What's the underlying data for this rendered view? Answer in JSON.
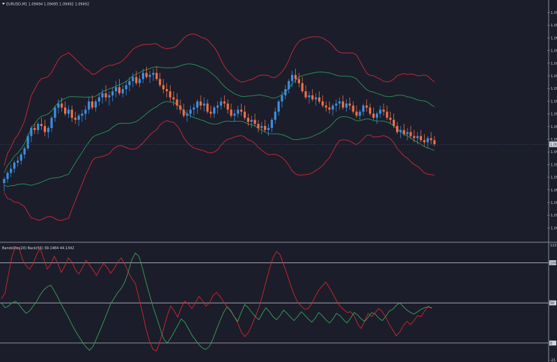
{
  "header": {
    "symbol_line": "EURUSD,M1  1.09494 1.09495 1.09492 1.09492",
    "indicator_line": "BandsOsc(20) Back(55) 39.1484 44.1342"
  },
  "colors": {
    "background": "#1b1d2a",
    "bull": "#3d8fe0",
    "bear": "#f07048",
    "band_outer": "#c0283a",
    "band_inner": "#2e8a58",
    "osc_red": "#d8262e",
    "osc_green": "#38a45a",
    "level_line": "#d0d4dc"
  },
  "chart_data": [
    {
      "type": "candlestick",
      "title": "EURUSD,M1",
      "last_price_label": "1.09492",
      "axis_label_prefix": "1.09",
      "bollinger_bands": {
        "outer": "red",
        "inner": "green"
      },
      "candles": [
        [
          28,
          31,
          24,
          30
        ],
        [
          30,
          34,
          28,
          33
        ],
        [
          33,
          37,
          31,
          35
        ],
        [
          35,
          39,
          33,
          38
        ],
        [
          38,
          41,
          36,
          39
        ],
        [
          39,
          43,
          37,
          42
        ],
        [
          42,
          46,
          40,
          45
        ],
        [
          45,
          52,
          44,
          51
        ],
        [
          51,
          56,
          48,
          55
        ],
        [
          55,
          57,
          52,
          54
        ],
        [
          54,
          58,
          52,
          57
        ],
        [
          57,
          60,
          54,
          56
        ],
        [
          56,
          59,
          51,
          53
        ],
        [
          53,
          56,
          50,
          55
        ],
        [
          55,
          61,
          53,
          60
        ],
        [
          60,
          66,
          58,
          65
        ],
        [
          65,
          69,
          62,
          67
        ],
        [
          67,
          70,
          63,
          65
        ],
        [
          65,
          68,
          61,
          62
        ],
        [
          62,
          66,
          60,
          64
        ],
        [
          64,
          66,
          58,
          60
        ],
        [
          60,
          63,
          57,
          59
        ],
        [
          59,
          62,
          56,
          61
        ],
        [
          61,
          64,
          58,
          62
        ],
        [
          62,
          66,
          59,
          64
        ],
        [
          64,
          70,
          62,
          68
        ],
        [
          68,
          71,
          64,
          65
        ],
        [
          65,
          69,
          63,
          68
        ],
        [
          68,
          72,
          66,
          70
        ],
        [
          70,
          74,
          67,
          72
        ],
        [
          72,
          76,
          68,
          70
        ],
        [
          70,
          73,
          66,
          71
        ],
        [
          71,
          75,
          68,
          73
        ],
        [
          73,
          78,
          70,
          75
        ],
        [
          75,
          79,
          71,
          72
        ],
        [
          72,
          76,
          70,
          74
        ],
        [
          74,
          78,
          71,
          76
        ],
        [
          76,
          80,
          73,
          78
        ],
        [
          78,
          82,
          75,
          80
        ],
        [
          80,
          83,
          76,
          77
        ],
        [
          77,
          81,
          75,
          79
        ],
        [
          79,
          84,
          77,
          82
        ],
        [
          82,
          85,
          79,
          80
        ],
        [
          80,
          83,
          77,
          81
        ],
        [
          81,
          84,
          78,
          82
        ],
        [
          82,
          85,
          78,
          79
        ],
        [
          79,
          82,
          75,
          76
        ],
        [
          76,
          79,
          72,
          74
        ],
        [
          74,
          77,
          70,
          73
        ],
        [
          73,
          76,
          68,
          70
        ],
        [
          70,
          73,
          66,
          69
        ],
        [
          69,
          72,
          64,
          66
        ],
        [
          66,
          69,
          62,
          64
        ],
        [
          64,
          67,
          60,
          61
        ],
        [
          61,
          64,
          58,
          62
        ],
        [
          62,
          66,
          60,
          64
        ],
        [
          64,
          67,
          61,
          65
        ],
        [
          65,
          69,
          62,
          68
        ],
        [
          68,
          71,
          64,
          66
        ],
        [
          66,
          70,
          63,
          67
        ],
        [
          67,
          69,
          62,
          63
        ],
        [
          63,
          66,
          60,
          62
        ],
        [
          62,
          66,
          60,
          65
        ],
        [
          65,
          68,
          62,
          66
        ],
        [
          66,
          70,
          64,
          68
        ],
        [
          68,
          71,
          65,
          67
        ],
        [
          67,
          69,
          62,
          64
        ],
        [
          64,
          67,
          60,
          61
        ],
        [
          61,
          64,
          58,
          62
        ],
        [
          62,
          66,
          60,
          64
        ],
        [
          64,
          67,
          61,
          63
        ],
        [
          63,
          66,
          59,
          60
        ],
        [
          60,
          62,
          56,
          58
        ],
        [
          58,
          61,
          55,
          59
        ],
        [
          59,
          62,
          56,
          57
        ],
        [
          57,
          59,
          53,
          55
        ],
        [
          55,
          58,
          52,
          56
        ],
        [
          56,
          59,
          53,
          54
        ],
        [
          54,
          57,
          51,
          55
        ],
        [
          55,
          60,
          53,
          59
        ],
        [
          59,
          65,
          57,
          63
        ],
        [
          63,
          69,
          61,
          68
        ],
        [
          68,
          73,
          65,
          71
        ],
        [
          71,
          76,
          69,
          74
        ],
        [
          74,
          79,
          72,
          78
        ],
        [
          78,
          83,
          75,
          81
        ],
        [
          81,
          84,
          77,
          79
        ],
        [
          79,
          82,
          75,
          77
        ],
        [
          77,
          80,
          72,
          73
        ],
        [
          73,
          76,
          69,
          70
        ],
        [
          70,
          73,
          67,
          71
        ],
        [
          71,
          74,
          68,
          69
        ],
        [
          69,
          72,
          66,
          70
        ],
        [
          70,
          73,
          67,
          68
        ],
        [
          68,
          71,
          65,
          66
        ],
        [
          66,
          68,
          63,
          65
        ],
        [
          65,
          68,
          62,
          64
        ],
        [
          64,
          67,
          61,
          66
        ],
        [
          66,
          69,
          63,
          67
        ],
        [
          67,
          70,
          64,
          68
        ],
        [
          68,
          71,
          64,
          65
        ],
        [
          65,
          69,
          63,
          67
        ],
        [
          67,
          70,
          64,
          66
        ],
        [
          66,
          68,
          62,
          63
        ],
        [
          63,
          66,
          60,
          61
        ],
        [
          61,
          64,
          59,
          63
        ],
        [
          63,
          67,
          61,
          66
        ],
        [
          66,
          69,
          63,
          65
        ],
        [
          65,
          67,
          61,
          62
        ],
        [
          62,
          65,
          59,
          60
        ],
        [
          60,
          63,
          57,
          62
        ],
        [
          62,
          66,
          60,
          64
        ],
        [
          64,
          67,
          61,
          63
        ],
        [
          63,
          66,
          59,
          60
        ],
        [
          60,
          63,
          57,
          59
        ],
        [
          59,
          62,
          55,
          56
        ],
        [
          56,
          58,
          52,
          53
        ],
        [
          53,
          56,
          50,
          54
        ],
        [
          54,
          57,
          51,
          52
        ],
        [
          52,
          55,
          49,
          53
        ],
        [
          53,
          56,
          50,
          51
        ],
        [
          51,
          54,
          48,
          50
        ],
        [
          50,
          53,
          47,
          51
        ],
        [
          51,
          54,
          48,
          49
        ],
        [
          49,
          52,
          46,
          48
        ],
        [
          48,
          51,
          45,
          50
        ],
        [
          50,
          53,
          47,
          49
        ],
        [
          49,
          51,
          46,
          47
        ]
      ]
    },
    {
      "type": "line",
      "title": "BandsOsc(20) Back(55)",
      "values_text": "39.1484 44.1342",
      "ylim": [
        -21,
        122
      ],
      "y_ticks": [
        "122",
        "100",
        "50",
        "0",
        "-21"
      ],
      "levels": [
        100,
        50,
        0
      ],
      "series": [
        {
          "color": "red",
          "values": [
            55,
            62,
            85,
            108,
            120,
            118,
            104,
            96,
            92,
            99,
            110,
            118,
            105,
            92,
            98,
            108,
            99,
            88,
            96,
            106,
            101,
            91,
            86,
            94,
            103,
            97,
            91,
            84,
            93,
            99,
            94,
            87,
            93,
            101,
            106,
            98,
            88,
            80,
            74,
            56,
            38,
            18,
            2,
            -8,
            -10,
            3,
            18,
            34,
            46,
            40,
            32,
            44,
            52,
            49,
            43,
            50,
            58,
            53,
            46,
            50,
            59,
            63,
            58,
            51,
            45,
            41,
            33,
            25,
            14,
            8,
            13,
            22,
            33,
            44,
            59,
            76,
            92,
            106,
            114,
            110,
            98,
            86,
            72,
            60,
            51,
            46,
            42,
            43,
            49,
            58,
            66,
            71,
            76,
            69,
            61,
            53,
            46,
            42,
            38,
            39,
            34,
            24,
            18,
            28,
            37,
            33,
            38,
            43,
            39,
            32,
            23,
            16,
            9,
            14,
            22,
            27,
            23,
            28,
            34,
            33,
            40,
            46,
            43
          ]
        },
        {
          "color": "green",
          "values": [
            50,
            44,
            46,
            50,
            52,
            48,
            42,
            37,
            40,
            46,
            52,
            60,
            66,
            70,
            72,
            65,
            57,
            48,
            40,
            32,
            23,
            15,
            8,
            1,
            -5,
            -9,
            -4,
            6,
            16,
            27,
            38,
            49,
            56,
            63,
            68,
            76,
            89,
            104,
            112,
            108,
            93,
            76,
            60,
            45,
            32,
            18,
            5,
            0,
            6,
            14,
            22,
            30,
            26,
            18,
            10,
            4,
            -2,
            -6,
            -8,
            -4,
            5,
            17,
            28,
            38,
            45,
            40,
            33,
            27,
            38,
            48,
            44,
            38,
            33,
            29,
            37,
            44,
            39,
            33,
            29,
            34,
            41,
            37,
            32,
            28,
            33,
            39,
            35,
            30,
            26,
            31,
            38,
            34,
            29,
            25,
            30,
            37,
            34,
            29,
            25,
            31,
            38,
            35,
            30,
            27,
            32,
            38,
            36,
            31,
            28,
            33,
            40,
            42,
            47,
            50,
            45,
            41,
            38,
            36,
            39,
            42,
            44,
            45,
            44
          ]
        }
      ]
    }
  ]
}
